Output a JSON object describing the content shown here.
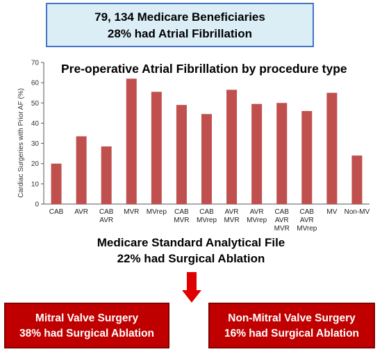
{
  "header": {
    "line1": "79, 134 Medicare Beneficiaries",
    "line2": "28% had Atrial Fibrillation"
  },
  "chart_data": {
    "type": "bar",
    "title": "Pre-operative Atrial Fibrillation by procedure type",
    "ylabel": "Cardiac Surgeries with Prior AF (%)",
    "xlabel": "",
    "ylim": [
      0,
      70
    ],
    "yticks": [
      0,
      10,
      20,
      30,
      40,
      50,
      60,
      70
    ],
    "grid": false,
    "categories": [
      [
        "CAB"
      ],
      [
        "AVR"
      ],
      [
        "CAB",
        "AVR"
      ],
      [
        "MVR"
      ],
      [
        "MVrep"
      ],
      [
        "CAB",
        "MVR"
      ],
      [
        "CAB",
        "MVrep"
      ],
      [
        "AVR",
        "MVR"
      ],
      [
        "AVR",
        "MVrep"
      ],
      [
        "CAB",
        "AVR",
        "MVR"
      ],
      [
        "CAB",
        "AVR",
        "MVrep"
      ],
      [
        "MV"
      ],
      [
        "Non-MV"
      ]
    ],
    "values": [
      20,
      33.5,
      28.5,
      62,
      55.5,
      49,
      44.5,
      56.5,
      49.5,
      50,
      46,
      55,
      24
    ],
    "bar_color": "#c0504d"
  },
  "middle": {
    "line1": "Medicare Standard Analytical File",
    "line2": "22% had Surgical Ablation"
  },
  "arrow_color": "#e00000",
  "left_box": {
    "line1": "Mitral Valve Surgery",
    "line2": "38% had Surgical Ablation"
  },
  "right_box": {
    "line1": "Non-Mitral Valve Surgery",
    "line2": "16% had Surgical Ablation"
  }
}
